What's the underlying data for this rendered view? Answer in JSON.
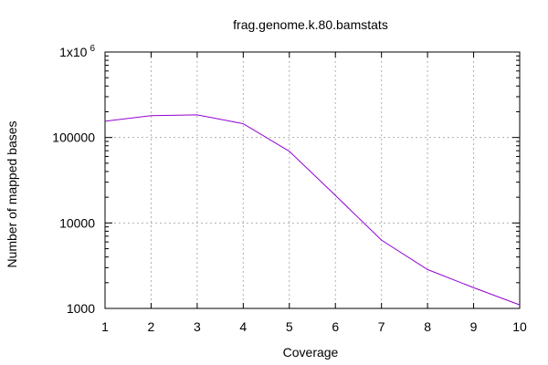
{
  "chart_data": {
    "type": "line",
    "title": "frag.genome.k.80.bamstats",
    "xlabel": "Coverage",
    "ylabel": "Number of mapped bases",
    "x": [
      1,
      2,
      3,
      4,
      5,
      6,
      7,
      8,
      9,
      10
    ],
    "series": [
      {
        "values": [
          155000,
          180000,
          184000,
          145000,
          69000,
          21000,
          6300,
          2850,
          1750,
          1100
        ],
        "color": "#9400d3"
      }
    ],
    "xlim": [
      1,
      10
    ],
    "ylim": [
      1000,
      1000000
    ],
    "yscale": "log",
    "grid": true,
    "xticks": [
      "1",
      "2",
      "3",
      "4",
      "5",
      "6",
      "7",
      "8",
      "9",
      "10"
    ],
    "yticks": [
      "1000",
      "10000",
      "100000"
    ],
    "ytop_tick": {
      "base": "1x10",
      "exponent": "6"
    }
  }
}
